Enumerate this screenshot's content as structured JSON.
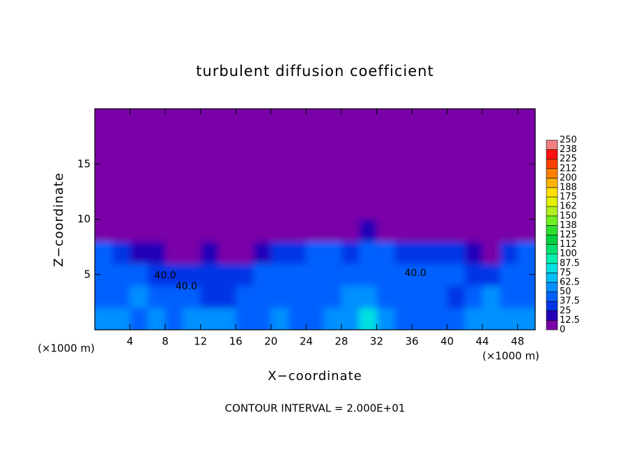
{
  "chart_data": {
    "type": "heatmap",
    "title": "turbulent diffusion coefficient",
    "x_label": "X−coordinate",
    "y_label": "Z−coordinate",
    "x_unit": "(×1000 m)",
    "footer": "CONTOUR INTERVAL = 2.000E+01",
    "xlim": [
      0,
      50
    ],
    "ylim": [
      0,
      20
    ],
    "xticks": [
      4,
      8,
      12,
      16,
      20,
      24,
      28,
      32,
      36,
      40,
      44,
      48
    ],
    "yticks": [
      5,
      10,
      15
    ],
    "x": [
      1,
      3,
      5,
      7,
      9,
      11,
      13,
      15,
      17,
      19,
      21,
      23,
      25,
      27,
      29,
      31,
      33,
      35,
      37,
      39,
      41,
      43,
      45,
      47,
      49
    ],
    "y": [
      1,
      3,
      5,
      7,
      9,
      11,
      13,
      15,
      17,
      19
    ],
    "values": [
      [
        50,
        55,
        45,
        50,
        45,
        60,
        55,
        50,
        45,
        45,
        50,
        40,
        45,
        55,
        60,
        75,
        55,
        45,
        45,
        45,
        45,
        50,
        60,
        55,
        60
      ],
      [
        40,
        45,
        50,
        40,
        45,
        40,
        35,
        35,
        45,
        40,
        45,
        40,
        40,
        45,
        50,
        55,
        45,
        40,
        40,
        40,
        35,
        45,
        50,
        40,
        45
      ],
      [
        45,
        40,
        45,
        35,
        30,
        35,
        35,
        30,
        25,
        40,
        40,
        40,
        40,
        45,
        45,
        40,
        40,
        45,
        40,
        40,
        40,
        35,
        30,
        40,
        45
      ],
      [
        40,
        35,
        20,
        15,
        10,
        10,
        15,
        5,
        5,
        15,
        30,
        35,
        40,
        40,
        35,
        40,
        40,
        30,
        35,
        30,
        30,
        15,
        5,
        35,
        40
      ],
      [
        0,
        0,
        0,
        0,
        0,
        0,
        0,
        0,
        0,
        0,
        0,
        0,
        0,
        0,
        5,
        15,
        5,
        0,
        0,
        0,
        0,
        0,
        0,
        0,
        0
      ],
      [
        0,
        0,
        0,
        0,
        0,
        0,
        0,
        0,
        0,
        0,
        0,
        0,
        0,
        0,
        0,
        0,
        0,
        0,
        0,
        0,
        0,
        0,
        0,
        0,
        0
      ],
      [
        0,
        0,
        0,
        0,
        0,
        0,
        0,
        0,
        0,
        0,
        0,
        0,
        0,
        0,
        0,
        0,
        0,
        0,
        0,
        0,
        0,
        0,
        0,
        0,
        0
      ],
      [
        0,
        0,
        0,
        0,
        0,
        0,
        0,
        0,
        0,
        0,
        0,
        0,
        0,
        0,
        0,
        0,
        0,
        0,
        0,
        0,
        0,
        0,
        0,
        0,
        0
      ],
      [
        0,
        0,
        0,
        0,
        0,
        0,
        0,
        0,
        0,
        0,
        0,
        0,
        0,
        0,
        0,
        0,
        0,
        0,
        0,
        0,
        0,
        0,
        0,
        0,
        0
      ],
      [
        0,
        0,
        0,
        0,
        0,
        0,
        0,
        0,
        0,
        0,
        0,
        0,
        0,
        0,
        0,
        0,
        0,
        0,
        0,
        0,
        0,
        0,
        0,
        0,
        0
      ]
    ],
    "annotations": [
      {
        "text": "40.0",
        "x": 10.4,
        "y": 3.9
      },
      {
        "text": "40.0",
        "x": 36.4,
        "y": 5.1
      },
      {
        "text": "40.0",
        "x": 8,
        "y": 4.9
      }
    ],
    "colorbar": {
      "lim": [
        0,
        250
      ],
      "ticks": [
        0,
        12.5,
        25,
        37.5,
        50,
        62.5,
        75,
        87.5,
        100,
        {
          "value": 112.5,
          "label": "112"
        },
        125,
        {
          "value": 137.5,
          "label": "138"
        },
        150,
        {
          "value": 162.5,
          "label": "162"
        },
        175,
        {
          "value": 187.5,
          "label": "188"
        },
        200,
        {
          "value": 212.5,
          "label": "212"
        },
        225,
        {
          "value": 237.5,
          "label": "238"
        },
        250
      ],
      "colors": [
        "#7a00a8",
        "#2400b8",
        "#0034e6",
        "#0060ff",
        "#0090ff",
        "#00bef8",
        "#00e0e0",
        "#00f0b0",
        "#00e070",
        "#00d040",
        "#30e030",
        "#70f020",
        "#b0f020",
        "#e0f000",
        "#ffe000",
        "#ffb000",
        "#ff8000",
        "#ff4000",
        "#ff1010",
        "#f08080"
      ]
    }
  }
}
